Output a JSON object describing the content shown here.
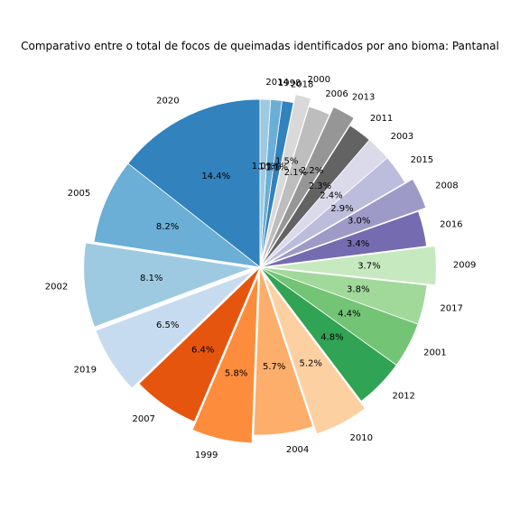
{
  "chart_data": {
    "type": "pie",
    "title": "Comparativo entre o total de focos de queimadas identificados por ano bioma: Pantanal",
    "start_angle_deg": 90,
    "direction": "counterclockwise",
    "slices": [
      {
        "label": "2020",
        "value": 14.4,
        "pct_label": "14.4%",
        "color": "#3182bd",
        "explode": 0
      },
      {
        "label": "2005",
        "value": 8.2,
        "pct_label": "8.2%",
        "color": "#6baed6",
        "explode": 0
      },
      {
        "label": "2002",
        "value": 8.1,
        "pct_label": "8.1%",
        "color": "#9ecae1",
        "explode": 0.05
      },
      {
        "label": "2019",
        "value": 6.5,
        "pct_label": "6.5%",
        "color": "#c6dbef",
        "explode": 0.05
      },
      {
        "label": "2007",
        "value": 6.4,
        "pct_label": "6.4%",
        "color": "#e6550d",
        "explode": 0
      },
      {
        "label": "1999",
        "value": 5.8,
        "pct_label": "5.8%",
        "color": "#fd8d3c",
        "explode": 0.05
      },
      {
        "label": "2004",
        "value": 5.7,
        "pct_label": "5.7%",
        "color": "#fdae6b",
        "explode": 0
      },
      {
        "label": "2010",
        "value": 5.2,
        "pct_label": "5.2%",
        "color": "#fdd0a2",
        "explode": 0.05
      },
      {
        "label": "2012",
        "value": 4.8,
        "pct_label": "4.8%",
        "color": "#31a354",
        "explode": 0
      },
      {
        "label": "2001",
        "value": 4.4,
        "pct_label": "4.4%",
        "color": "#74c476",
        "explode": 0
      },
      {
        "label": "2017",
        "value": 3.8,
        "pct_label": "3.8%",
        "color": "#a1d99b",
        "explode": 0
      },
      {
        "label": "2009",
        "value": 3.7,
        "pct_label": "3.7%",
        "color": "#c7e9c0",
        "explode": 0.05
      },
      {
        "label": "2016",
        "value": 3.4,
        "pct_label": "3.4%",
        "color": "#756bb1",
        "explode": 0
      },
      {
        "label": "2008",
        "value": 3.0,
        "pct_label": "3.0%",
        "color": "#9e9ac8",
        "explode": 0.05
      },
      {
        "label": "2015",
        "value": 2.9,
        "pct_label": "2.9%",
        "color": "#bcbddc",
        "explode": 0
      },
      {
        "label": "2003",
        "value": 2.4,
        "pct_label": "2.4%",
        "color": "#dadaeb",
        "explode": 0
      },
      {
        "label": "2011",
        "value": 2.3,
        "pct_label": "2.3%",
        "color": "#636363",
        "explode": 0
      },
      {
        "label": "2013",
        "value": 2.2,
        "pct_label": "2.2%",
        "color": "#969696",
        "explode": 0.05
      },
      {
        "label": "2006",
        "value": 2.1,
        "pct_label": "2.1%",
        "color": "#bdbdbd",
        "explode": 0
      },
      {
        "label": "2000",
        "value": 1.5,
        "pct_label": "1.5%",
        "color": "#d9d9d9",
        "explode": 0.05
      },
      {
        "label": "2018",
        "value": 1.1,
        "pct_label": "1.1%",
        "color": "#3182bd",
        "explode": 0
      },
      {
        "label": "1998",
        "value": 1.1,
        "pct_label": "1.1%",
        "color": "#6baed6",
        "explode": 0
      },
      {
        "label": "2014",
        "value": 1.0,
        "pct_label": "1.0%",
        "color": "#9ecae1",
        "explode": 0
      }
    ]
  }
}
